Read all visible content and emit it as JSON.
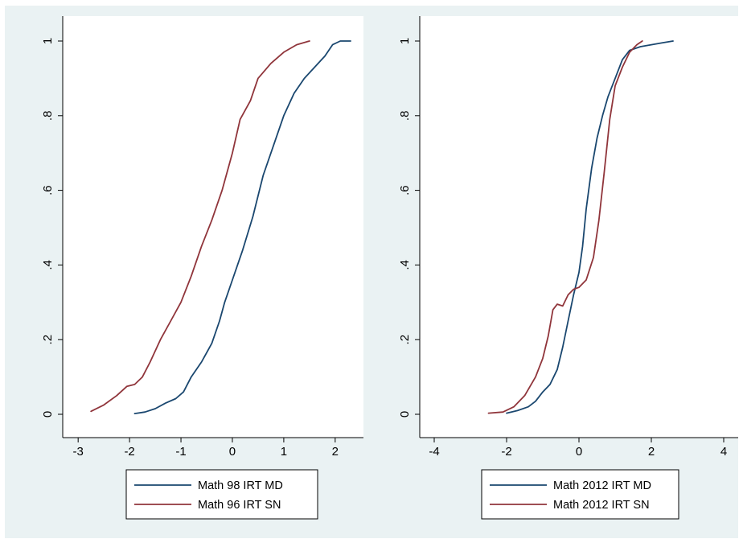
{
  "colors": {
    "figure_bg": "#eaf2f3",
    "plot_bg": "#ffffff",
    "series_md": "#1a476f",
    "series_sn": "#90353b"
  },
  "chart_data": [
    {
      "type": "line",
      "title": "",
      "xlabel": "",
      "ylabel": "",
      "xlim": [
        -3.3,
        2.55
      ],
      "ylim": [
        0,
        1
      ],
      "xticks": [
        "-3",
        "-2",
        "-1",
        "0",
        "1",
        "2"
      ],
      "yticks": [
        "0",
        ".2",
        ".4",
        ".6",
        ".8",
        "1"
      ],
      "grid": false,
      "legend_position": "bottom",
      "series": [
        {
          "name": "Math 98 IRT MD",
          "color": "#1a476f",
          "points": [
            [
              -1.9,
              0.002
            ],
            [
              -1.7,
              0.006
            ],
            [
              -1.5,
              0.015
            ],
            [
              -1.3,
              0.03
            ],
            [
              -1.1,
              0.042
            ],
            [
              -0.95,
              0.06
            ],
            [
              -0.8,
              0.1
            ],
            [
              -0.6,
              0.14
            ],
            [
              -0.4,
              0.19
            ],
            [
              -0.25,
              0.25
            ],
            [
              -0.15,
              0.3
            ],
            [
              0.0,
              0.36
            ],
            [
              0.2,
              0.44
            ],
            [
              0.4,
              0.53
            ],
            [
              0.6,
              0.64
            ],
            [
              0.8,
              0.72
            ],
            [
              1.0,
              0.8
            ],
            [
              1.2,
              0.86
            ],
            [
              1.4,
              0.9
            ],
            [
              1.6,
              0.93
            ],
            [
              1.8,
              0.96
            ],
            [
              1.95,
              0.99
            ],
            [
              2.1,
              1.0
            ],
            [
              2.3,
              1.0
            ]
          ]
        },
        {
          "name": "Math 96 IRT SN",
          "color": "#90353b",
          "points": [
            [
              -2.75,
              0.008
            ],
            [
              -2.5,
              0.025
            ],
            [
              -2.25,
              0.05
            ],
            [
              -2.05,
              0.075
            ],
            [
              -1.9,
              0.08
            ],
            [
              -1.75,
              0.1
            ],
            [
              -1.6,
              0.14
            ],
            [
              -1.4,
              0.2
            ],
            [
              -1.2,
              0.25
            ],
            [
              -1.0,
              0.3
            ],
            [
              -0.8,
              0.37
            ],
            [
              -0.6,
              0.45
            ],
            [
              -0.4,
              0.52
            ],
            [
              -0.2,
              0.6
            ],
            [
              0.0,
              0.7
            ],
            [
              0.15,
              0.79
            ],
            [
              0.35,
              0.84
            ],
            [
              0.5,
              0.9
            ],
            [
              0.75,
              0.94
            ],
            [
              1.0,
              0.97
            ],
            [
              1.25,
              0.99
            ],
            [
              1.5,
              1.0
            ]
          ]
        }
      ]
    },
    {
      "type": "line",
      "title": "",
      "xlabel": "",
      "ylabel": "",
      "xlim": [
        -4.4,
        4.4
      ],
      "ylim": [
        0,
        1
      ],
      "xticks": [
        "-4",
        "-2",
        "0",
        "2",
        "4"
      ],
      "yticks": [
        "0",
        ".2",
        ".4",
        ".6",
        ".8",
        "1"
      ],
      "grid": false,
      "legend_position": "bottom",
      "series": [
        {
          "name": "Math 2012 IRT MD",
          "color": "#1a476f",
          "points": [
            [
              -2.0,
              0.003
            ],
            [
              -1.7,
              0.01
            ],
            [
              -1.4,
              0.02
            ],
            [
              -1.2,
              0.035
            ],
            [
              -1.0,
              0.06
            ],
            [
              -0.8,
              0.08
            ],
            [
              -0.6,
              0.12
            ],
            [
              -0.45,
              0.18
            ],
            [
              -0.3,
              0.25
            ],
            [
              -0.15,
              0.32
            ],
            [
              0.0,
              0.38
            ],
            [
              0.1,
              0.45
            ],
            [
              0.2,
              0.55
            ],
            [
              0.35,
              0.66
            ],
            [
              0.5,
              0.74
            ],
            [
              0.65,
              0.8
            ],
            [
              0.8,
              0.85
            ],
            [
              1.0,
              0.9
            ],
            [
              1.2,
              0.95
            ],
            [
              1.4,
              0.975
            ],
            [
              1.7,
              0.985
            ],
            [
              2.0,
              0.99
            ],
            [
              2.3,
              0.995
            ],
            [
              2.6,
              1.0
            ]
          ]
        },
        {
          "name": "Math 2012 IRT SN",
          "color": "#90353b",
          "points": [
            [
              -2.5,
              0.003
            ],
            [
              -2.1,
              0.006
            ],
            [
              -1.8,
              0.02
            ],
            [
              -1.5,
              0.05
            ],
            [
              -1.2,
              0.1
            ],
            [
              -1.0,
              0.15
            ],
            [
              -0.85,
              0.21
            ],
            [
              -0.72,
              0.28
            ],
            [
              -0.6,
              0.295
            ],
            [
              -0.45,
              0.29
            ],
            [
              -0.3,
              0.32
            ],
            [
              -0.15,
              0.335
            ],
            [
              0.0,
              0.34
            ],
            [
              0.2,
              0.36
            ],
            [
              0.4,
              0.42
            ],
            [
              0.55,
              0.52
            ],
            [
              0.7,
              0.65
            ],
            [
              0.85,
              0.79
            ],
            [
              1.0,
              0.88
            ],
            [
              1.2,
              0.93
            ],
            [
              1.4,
              0.97
            ],
            [
              1.6,
              0.99
            ],
            [
              1.75,
              1.0
            ]
          ]
        }
      ]
    }
  ]
}
